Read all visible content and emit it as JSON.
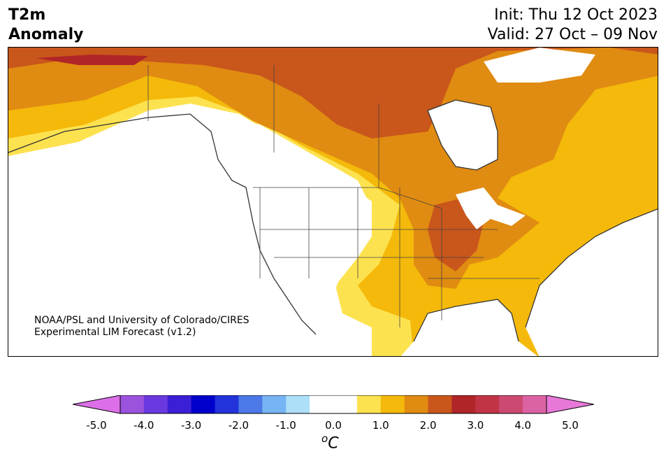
{
  "header": {
    "title_line1": "T2m",
    "title_line2": "Anomaly",
    "init": "Init: Thu 12 Oct 2023",
    "valid": "Valid: 27 Oct – 09 Nov"
  },
  "map": {
    "region": "North America",
    "credit_line1": "NOAA/PSL and University of Colorado/CIRES",
    "credit_line2": "Experimental LIM Forecast (v1.2)"
  },
  "colorbar": {
    "unit_base": "C",
    "unit_prefix": "o",
    "tick_labels": [
      "-5.0",
      "-4.0",
      "-3.0",
      "-2.0",
      "-1.0",
      "0.0",
      "1.0",
      "2.0",
      "3.0",
      "4.0",
      "5.0"
    ],
    "colors": [
      "#dc6fe8",
      "#9b52dc",
      "#6a38df",
      "#3b1fd6",
      "#0000cc",
      "#2233dc",
      "#4c78e8",
      "#77b4f3",
      "#addff8",
      "#ffffff",
      "#ffffff",
      "#fde24f",
      "#f4b90a",
      "#e08b11",
      "#c9561b",
      "#b02527",
      "#c03446",
      "#cc4a72",
      "#db63a4",
      "#e878d8"
    ],
    "extend_low_color": "#dc6fe8",
    "extend_high_color": "#e878d8"
  }
}
